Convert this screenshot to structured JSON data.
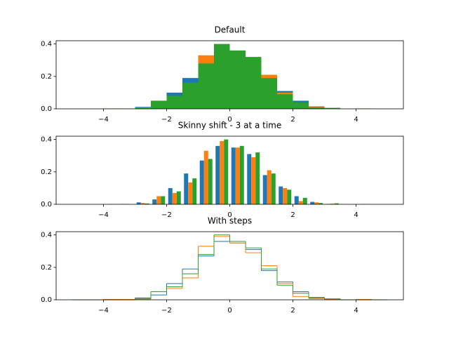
{
  "chart_data": [
    {
      "type": "histogram",
      "style": "overlap",
      "title": "Default",
      "bins": [
        -5,
        -4.5,
        -4,
        -3.5,
        -3,
        -2.5,
        -2,
        -1.5,
        -1,
        -0.5,
        0,
        0.5,
        1,
        1.5,
        2,
        2.5,
        3,
        3.5,
        4,
        4.5,
        5
      ],
      "series": [
        {
          "color": "#1f77b4",
          "values": [
            0,
            0,
            0,
            0.002,
            0.012,
            0.03,
            0.1,
            0.19,
            0.27,
            0.36,
            0.35,
            0.31,
            0.18,
            0.11,
            0.05,
            0.015,
            0.002,
            0,
            0,
            0
          ]
        },
        {
          "color": "#ff7f0e",
          "values": [
            0,
            0,
            0.002,
            0.002,
            0.008,
            0.05,
            0.07,
            0.135,
            0.33,
            0.39,
            0.35,
            0.29,
            0.21,
            0.1,
            0.02,
            0.012,
            0.004,
            0,
            0.002,
            0
          ]
        },
        {
          "color": "#2ca02c",
          "values": [
            0,
            0,
            0,
            0,
            0.005,
            0.05,
            0.08,
            0.16,
            0.28,
            0.4,
            0.36,
            0.32,
            0.19,
            0.09,
            0.04,
            0.008,
            0.006,
            0,
            0,
            0
          ]
        }
      ],
      "xlim": [
        -5.5,
        5.5
      ],
      "ylim": [
        0,
        0.42
      ],
      "xticks": [
        {
          "value": -4,
          "label": "−4"
        },
        {
          "value": -2,
          "label": "−2"
        },
        0,
        2,
        4
      ],
      "yticks": [
        {
          "value": 0,
          "label": "0.0"
        },
        0.2,
        0.4
      ]
    },
    {
      "type": "histogram",
      "style": "side-by-side",
      "title": "Skinny shift - 3 at a time",
      "bins": [
        -5,
        -4.5,
        -4,
        -3.5,
        -3,
        -2.5,
        -2,
        -1.5,
        -1,
        -0.5,
        0,
        0.5,
        1,
        1.5,
        2,
        2.5,
        3,
        3.5,
        4,
        4.5,
        5
      ],
      "series": [
        {
          "color": "#1f77b4",
          "values": [
            0,
            0,
            0,
            0.002,
            0.012,
            0.03,
            0.1,
            0.19,
            0.27,
            0.36,
            0.35,
            0.31,
            0.18,
            0.11,
            0.05,
            0.015,
            0.002,
            0,
            0,
            0
          ]
        },
        {
          "color": "#ff7f0e",
          "values": [
            0,
            0,
            0.002,
            0.002,
            0.008,
            0.05,
            0.07,
            0.135,
            0.33,
            0.39,
            0.35,
            0.29,
            0.21,
            0.1,
            0.02,
            0.012,
            0.004,
            0,
            0.002,
            0
          ]
        },
        {
          "color": "#2ca02c",
          "values": [
            0,
            0,
            0,
            0,
            0.005,
            0.05,
            0.08,
            0.16,
            0.28,
            0.4,
            0.36,
            0.32,
            0.19,
            0.09,
            0.04,
            0.008,
            0.006,
            0,
            0,
            0
          ]
        }
      ],
      "xlim": [
        -5.5,
        5.5
      ],
      "ylim": [
        0,
        0.42
      ],
      "xticks": [
        {
          "value": -4,
          "label": "−4"
        },
        {
          "value": -2,
          "label": "−2"
        },
        0,
        2,
        4
      ],
      "yticks": [
        {
          "value": 0,
          "label": "0.0"
        },
        0.2,
        0.4
      ]
    },
    {
      "type": "histogram",
      "style": "step",
      "title": "With steps",
      "bins": [
        -5,
        -4.5,
        -4,
        -3.5,
        -3,
        -2.5,
        -2,
        -1.5,
        -1,
        -0.5,
        0,
        0.5,
        1,
        1.5,
        2,
        2.5,
        3,
        3.5,
        4,
        4.5,
        5
      ],
      "series": [
        {
          "color": "#1f77b4",
          "values": [
            0,
            0,
            0,
            0.002,
            0.012,
            0.03,
            0.1,
            0.19,
            0.27,
            0.36,
            0.35,
            0.31,
            0.18,
            0.11,
            0.05,
            0.015,
            0.002,
            0,
            0,
            0
          ]
        },
        {
          "color": "#ff7f0e",
          "values": [
            0,
            0,
            0.002,
            0.002,
            0.008,
            0.05,
            0.07,
            0.135,
            0.33,
            0.39,
            0.35,
            0.29,
            0.21,
            0.1,
            0.02,
            0.012,
            0.004,
            0,
            0.002,
            0
          ]
        },
        {
          "color": "#2ca02c",
          "values": [
            0,
            0,
            0,
            0,
            0.005,
            0.05,
            0.08,
            0.16,
            0.28,
            0.4,
            0.36,
            0.32,
            0.19,
            0.09,
            0.04,
            0.008,
            0.006,
            0,
            0,
            0
          ]
        }
      ],
      "xlim": [
        -5.5,
        5.5
      ],
      "ylim": [
        0,
        0.42
      ],
      "xticks": [
        {
          "value": -4,
          "label": "−4"
        },
        {
          "value": -2,
          "label": "−2"
        },
        0,
        2,
        4
      ],
      "yticks": [
        {
          "value": 0,
          "label": "0.0"
        },
        0.2,
        0.4
      ]
    }
  ]
}
